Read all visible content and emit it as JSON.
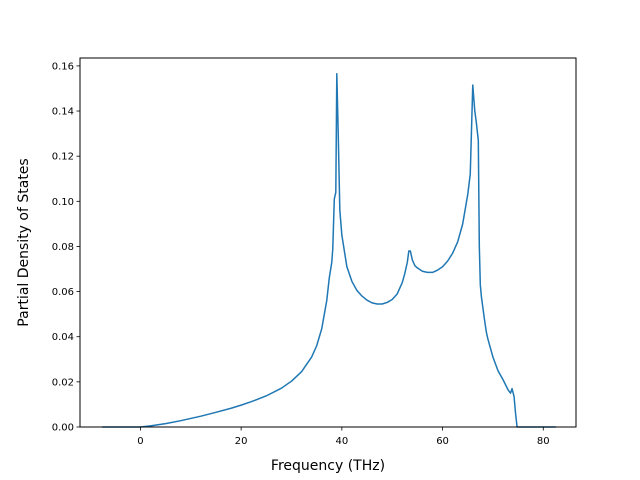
{
  "chart_data": {
    "type": "line",
    "xlabel": "Frequency (THz)",
    "ylabel": "Partial Density of States",
    "xlim": [
      -12.0,
      86.5
    ],
    "ylim": [
      0.0,
      0.1635
    ],
    "xticks": [
      0,
      20,
      40,
      60,
      80
    ],
    "yticks": [
      0.0,
      0.02,
      0.04,
      0.06,
      0.08,
      0.1,
      0.12,
      0.14,
      0.16
    ],
    "xtick_labels": [
      "0",
      "20",
      "40",
      "60",
      "80"
    ],
    "ytick_labels": [
      "0.00",
      "0.02",
      "0.04",
      "0.06",
      "0.08",
      "0.10",
      "0.12",
      "0.14",
      "0.16"
    ],
    "grid": false,
    "series": [
      {
        "color": "#1f77b4",
        "x": [
          -7.6,
          -4,
          0,
          2,
          5,
          8,
          10,
          12,
          15,
          18,
          20,
          22,
          25,
          28,
          30,
          32,
          34,
          35,
          36,
          37,
          37.5,
          38.0,
          38.2,
          38.5,
          38.8,
          39.0,
          39.3,
          39.6,
          40.0,
          41.0,
          42.0,
          43.0,
          44.0,
          45.0,
          46.0,
          47.0,
          48.0,
          49.0,
          50.0,
          51.0,
          52.0,
          52.5,
          53.0,
          53.3,
          53.6,
          54.0,
          54.5,
          55.0,
          56.0,
          57.0,
          58.0,
          59.0,
          60.0,
          61.0,
          62.0,
          63.0,
          64.0,
          65.0,
          65.5,
          66.0,
          66.4,
          66.7,
          66.9,
          67.1,
          67.3,
          67.5,
          67.7,
          68.0,
          68.3,
          68.7,
          69.0,
          70.0,
          71.0,
          72.0,
          73.0,
          73.5,
          73.8,
          74.2,
          74.5,
          74.8,
          75.1,
          76.0,
          78.0,
          80.0,
          82.5
        ],
        "y": [
          0,
          0,
          0,
          0.0005,
          0.0015,
          0.0028,
          0.0038,
          0.0048,
          0.0065,
          0.0083,
          0.0097,
          0.0112,
          0.0138,
          0.0172,
          0.0203,
          0.0245,
          0.031,
          0.036,
          0.0435,
          0.056,
          0.066,
          0.073,
          0.079,
          0.101,
          0.104,
          0.1565,
          0.128,
          0.096,
          0.085,
          0.071,
          0.0645,
          0.0605,
          0.058,
          0.0562,
          0.055,
          0.0545,
          0.0545,
          0.0552,
          0.0565,
          0.059,
          0.064,
          0.068,
          0.073,
          0.078,
          0.078,
          0.074,
          0.0715,
          0.0705,
          0.069,
          0.0685,
          0.0685,
          0.0695,
          0.071,
          0.0735,
          0.077,
          0.082,
          0.09,
          0.103,
          0.112,
          0.1515,
          0.14,
          0.135,
          0.131,
          0.127,
          0.08,
          0.063,
          0.058,
          0.053,
          0.048,
          0.042,
          0.039,
          0.031,
          0.025,
          0.021,
          0.0165,
          0.015,
          0.017,
          0.0135,
          0.006,
          0,
          0,
          0,
          0,
          0,
          0
        ]
      }
    ]
  }
}
